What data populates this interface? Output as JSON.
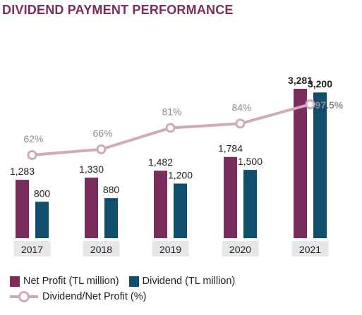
{
  "title": "DIVIDEND PAYMENT PERFORMANCE",
  "colors": {
    "net_profit": "#7b2d5c",
    "dividend": "#0f4e6c",
    "ratio": "#cfa9bd",
    "year_label_bg": "#e6e7e8",
    "title": "#7b2d5c",
    "text": "#231f20",
    "ratio_text": "#8b8d90"
  },
  "legend": {
    "net_profit": "Net Profit (TL million)",
    "dividend": "Dividend (TL million)",
    "ratio": "Dividend/Net Profit (%)"
  },
  "chart_data": {
    "type": "bar",
    "categories": [
      "2017",
      "2018",
      "2019",
      "2020",
      "2021"
    ],
    "series": [
      {
        "name": "Net Profit (TL million)",
        "values": [
          1283,
          1330,
          1482,
          1784,
          3281
        ],
        "labels": [
          "1,283",
          "1,330",
          "1,482",
          "1,784",
          "3,281"
        ]
      },
      {
        "name": "Dividend (TL million)",
        "values": [
          800,
          880,
          1200,
          1500,
          3200
        ],
        "labels": [
          "800",
          "880",
          "1,200",
          "1,500",
          "3,200"
        ]
      }
    ],
    "line_series": {
      "name": "Dividend/Net Profit (%)",
      "values": [
        62,
        66,
        81,
        84,
        97.5
      ],
      "labels": [
        "62%",
        "66%",
        "81%",
        "84%",
        "97.5%"
      ]
    },
    "legend_position": "bottom-left",
    "grid": false
  }
}
